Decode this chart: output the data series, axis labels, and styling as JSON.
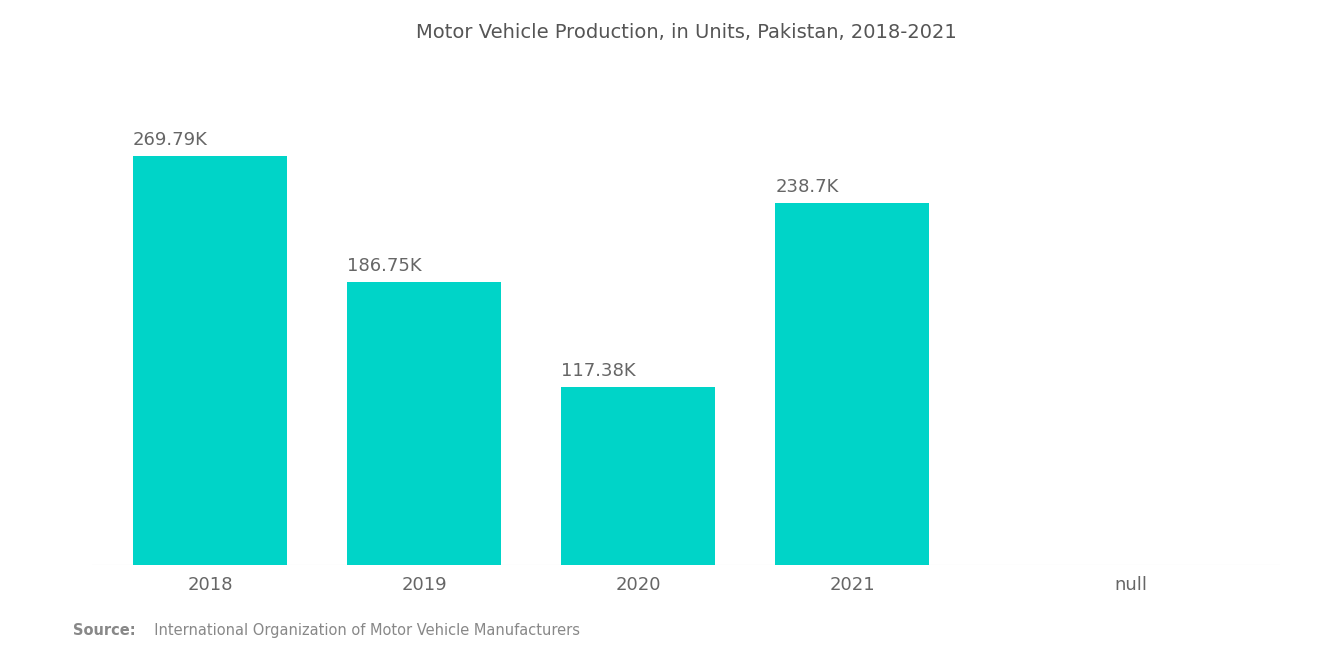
{
  "title": "Motor Vehicle Production, in Units, Pakistan, 2018-2021",
  "categories": [
    "2018",
    "2019",
    "2020",
    "2021",
    "null"
  ],
  "values": [
    269790,
    186750,
    117380,
    238700
  ],
  "labels": [
    "269.79K",
    "186.75K",
    "117.38K",
    "238.7K"
  ],
  "bar_color": "#00D4C8",
  "background_color": "#ffffff",
  "title_fontsize": 14,
  "label_fontsize": 13,
  "tick_fontsize": 13,
  "source_bold": "Source:",
  "source_normal": "  International Organization of Motor Vehicle Manufacturers",
  "ylim": [
    0,
    320000
  ],
  "bar_width": 0.72,
  "x_positions": [
    0,
    1,
    2,
    3
  ],
  "null_x": 4.3,
  "xlim": [
    -0.55,
    5.0
  ]
}
